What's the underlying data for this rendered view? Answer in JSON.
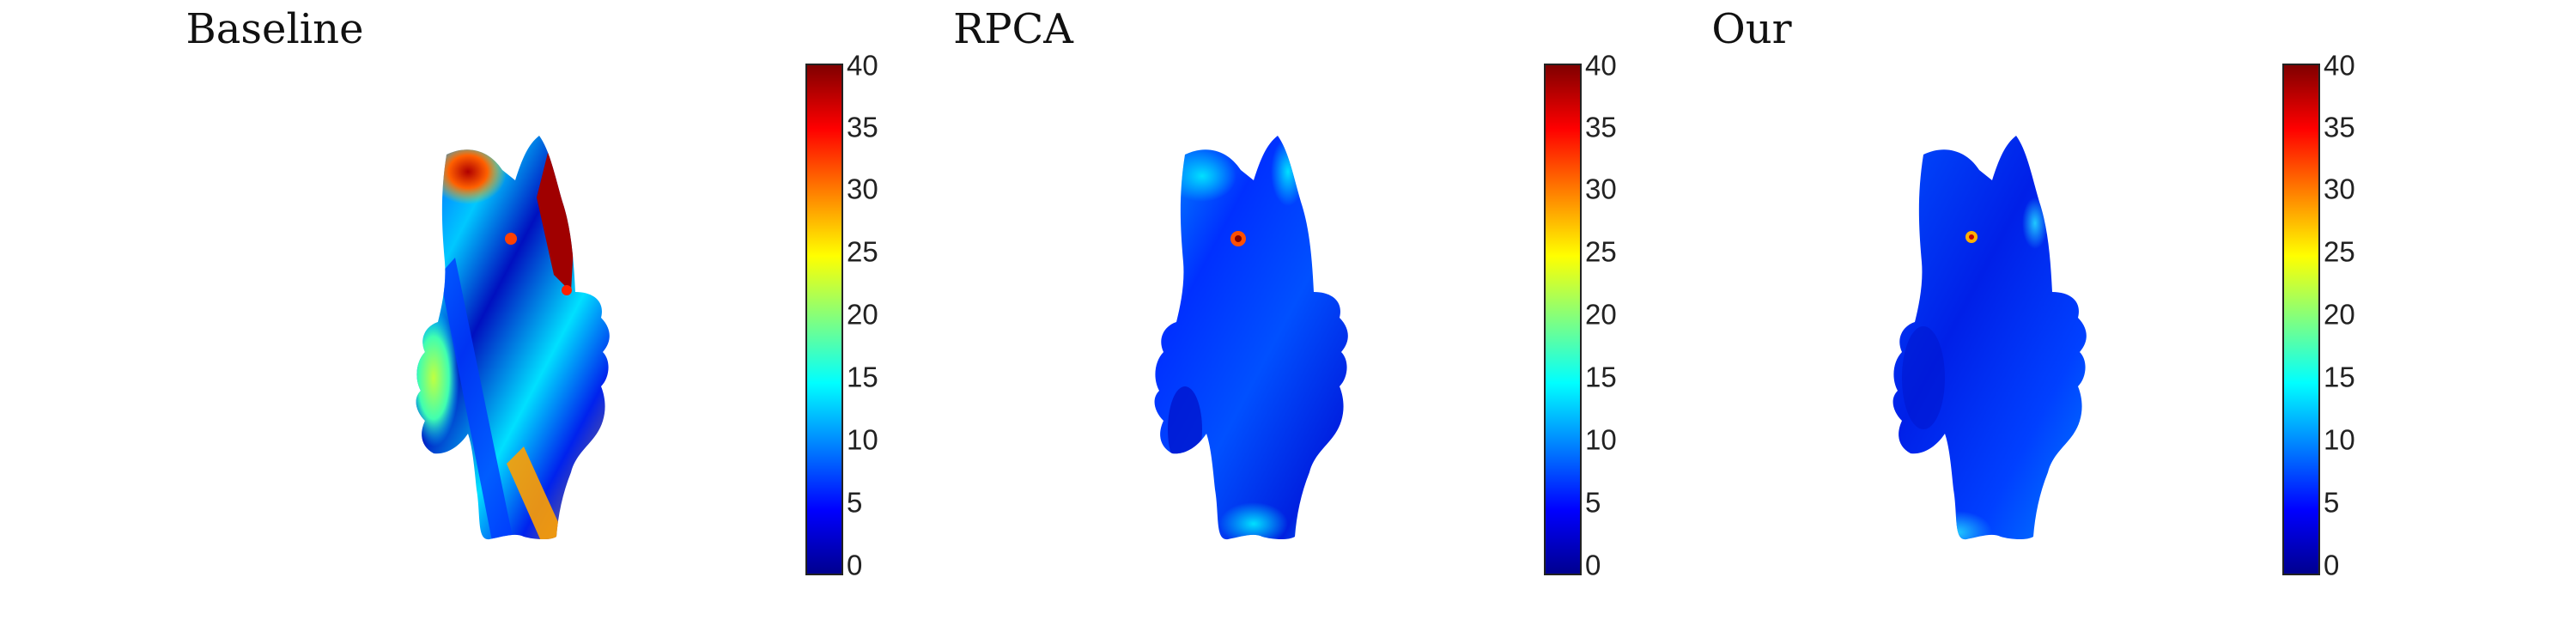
{
  "panels": [
    {
      "title": "Baseline"
    },
    {
      "title": "RPCA"
    },
    {
      "title": "Our"
    }
  ],
  "colorbar": {
    "ticks": [
      "40",
      "35",
      "30",
      "25",
      "20",
      "15",
      "10",
      "5",
      "0"
    ],
    "colormap": "jet",
    "range": [
      0,
      40
    ]
  }
}
